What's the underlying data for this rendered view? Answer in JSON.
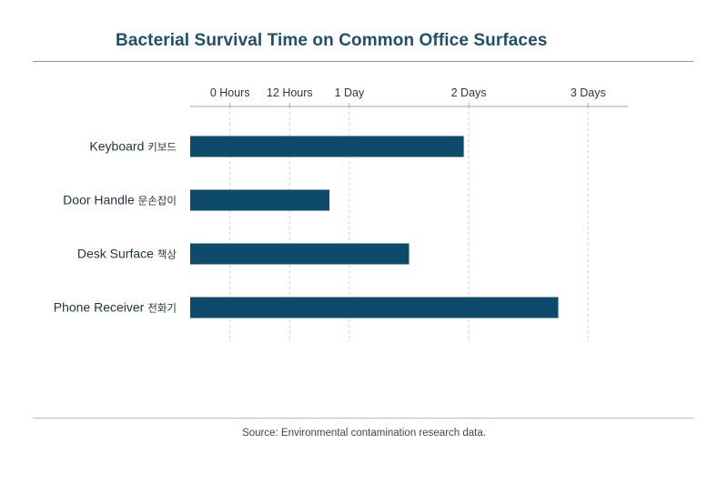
{
  "chart_data": {
    "type": "bar",
    "orientation": "horizontal",
    "title": "Bacterial Survival Time on Common Office Surfaces",
    "source": "Source: Environmental contamination research data.",
    "units": "hours",
    "x_ticks": [
      {
        "value": 0,
        "label": "0 Hours"
      },
      {
        "value": 12,
        "label": "12 Hours"
      },
      {
        "value": 24,
        "label": "1 Day"
      },
      {
        "value": 48,
        "label": "2 Days"
      },
      {
        "value": 72,
        "label": "3 Days"
      }
    ],
    "xlim": [
      -8,
      80
    ],
    "grid": "vertical-dashed",
    "bar_color": "#0d4a6b",
    "categories": [
      {
        "label": "Keyboard",
        "sub": "키보드"
      },
      {
        "label": "Door Handle",
        "sub": "문손잡이"
      },
      {
        "label": "Desk Surface",
        "sub": "책상"
      },
      {
        "label": "Phone Receiver",
        "sub": "전화기"
      }
    ],
    "values": [
      47,
      20,
      36,
      66
    ]
  }
}
